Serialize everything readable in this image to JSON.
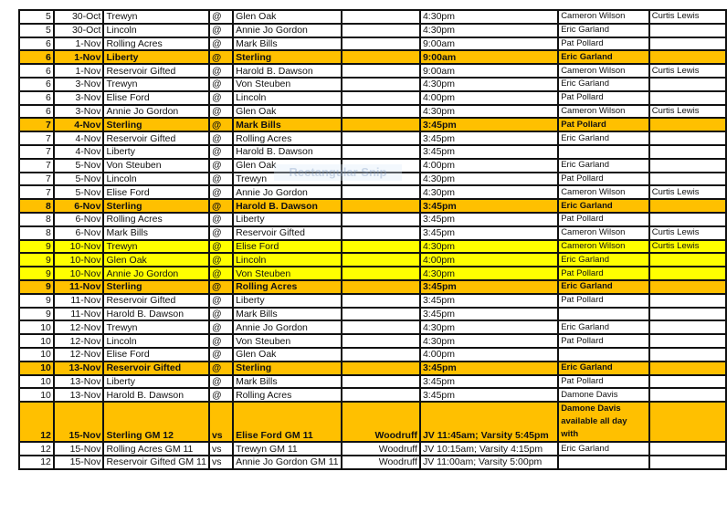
{
  "colors": {
    "highlight_orange": "#FFC000",
    "highlight_yellow": "#FFFF00"
  },
  "watermark": "Rectangular Snip",
  "rows": [
    {
      "week": "5",
      "date": "30-Oct",
      "home": "Trewyn",
      "sep": "@",
      "away": "Glen Oak",
      "location": "",
      "time": "4:30pm",
      "official1": "Cameron Wilson",
      "official2": "Curtis Lewis",
      "style": ""
    },
    {
      "week": "5",
      "date": "30-Oct",
      "home": "Lincoln",
      "sep": "@",
      "away": "Annie Jo Gordon",
      "location": "",
      "time": "4:30pm",
      "official1": "Eric  Garland",
      "official2": "",
      "style": ""
    },
    {
      "week": "6",
      "date": "1-Nov",
      "home": "Rolling Acres",
      "sep": "@",
      "away": "Mark Bills",
      "location": "",
      "time": "9:00am",
      "official1": "Pat Pollard",
      "official2": "",
      "style": ""
    },
    {
      "week": "6",
      "date": "1-Nov",
      "home": "Liberty",
      "sep": "@",
      "away": "Sterling",
      "location": "",
      "time": "9:00am",
      "official1": "Eric Garland",
      "official2": "",
      "style": "orange"
    },
    {
      "week": "6",
      "date": "1-Nov",
      "home": "Reservoir Gifted",
      "sep": "@",
      "away": "Harold B. Dawson",
      "location": "",
      "time": "9:00am",
      "official1": "Cameron Wilson",
      "official2": "Curtis Lewis",
      "style": ""
    },
    {
      "week": "6",
      "date": "3-Nov",
      "home": "Trewyn",
      "sep": "@",
      "away": "Von Steuben",
      "location": "",
      "time": "4:30pm",
      "official1": "Eric Garland",
      "official2": "",
      "style": ""
    },
    {
      "week": "6",
      "date": "3-Nov",
      "home": "Elise Ford",
      "sep": "@",
      "away": "Lincoln",
      "location": "",
      "time": "4:00pm",
      "official1": "Pat Pollard",
      "official2": "",
      "style": ""
    },
    {
      "week": "6",
      "date": "3-Nov",
      "home": "Annie Jo Gordon",
      "sep": "@",
      "away": "Glen Oak",
      "location": "",
      "time": "4:30pm",
      "official1": "Cameron Wilson",
      "official2": "Curtis Lewis",
      "style": ""
    },
    {
      "week": "7",
      "date": "4-Nov",
      "home": "Sterling",
      "sep": "@",
      "away": "Mark Bills",
      "location": "",
      "time": "3:45pm",
      "official1": "Pat Pollard",
      "official2": "",
      "style": "orange"
    },
    {
      "week": "7",
      "date": "4-Nov",
      "home": "Reservoir Gifted",
      "sep": "@",
      "away": "Rolling Acres",
      "location": "",
      "time": "3:45pm",
      "official1": "Eric  Garland",
      "official2": "",
      "style": ""
    },
    {
      "week": "7",
      "date": "4-Nov",
      "home": "Liberty",
      "sep": "@",
      "away": "Harold B. Dawson",
      "location": "",
      "time": "3:45pm",
      "official1": "",
      "official2": "",
      "style": ""
    },
    {
      "week": "7",
      "date": "5-Nov",
      "home": "Von Steuben",
      "sep": "@",
      "away": "Glen Oak",
      "location": "",
      "time": "4:00pm",
      "official1": "Eric  Garland",
      "official2": "",
      "style": ""
    },
    {
      "week": "7",
      "date": "5-Nov",
      "home": "Lincoln",
      "sep": "@",
      "away": "Trewyn",
      "location": "",
      "time": "4:30pm",
      "official1": "Pat Pollard",
      "official2": "",
      "style": ""
    },
    {
      "week": "7",
      "date": "5-Nov",
      "home": "Elise Ford",
      "sep": "@",
      "away": "Annie Jo Gordon",
      "location": "",
      "time": "4:30pm",
      "official1": "Cameron Wilson",
      "official2": "Curtis Lewis",
      "style": ""
    },
    {
      "week": "8",
      "date": "6-Nov",
      "home": "Sterling",
      "sep": "@",
      "away": "Harold B. Dawson",
      "location": "",
      "time": "3:45pm",
      "official1": "Eric Garland",
      "official2": "",
      "style": "orange"
    },
    {
      "week": "8",
      "date": "6-Nov",
      "home": "Rolling Acres",
      "sep": "@",
      "away": "Liberty",
      "location": "",
      "time": "3:45pm",
      "official1": "Pat Pollard",
      "official2": "",
      "style": ""
    },
    {
      "week": "8",
      "date": "6-Nov",
      "home": "Mark Bills",
      "sep": "@",
      "away": "Reservoir Gifted",
      "location": "",
      "time": "3:45pm",
      "official1": "Cameron Wilson",
      "official2": "Curtis Lewis",
      "style": ""
    },
    {
      "week": "9",
      "date": "10-Nov",
      "home": "Trewyn",
      "sep": "@",
      "away": "Elise Ford",
      "location": "",
      "time": "4:30pm",
      "official1": "Cameron Wilson",
      "official2": "Curtis Lewis",
      "style": "yellow"
    },
    {
      "week": "9",
      "date": "10-Nov",
      "home": "Glen Oak",
      "sep": "@",
      "away": "Lincoln",
      "location": "",
      "time": "4:00pm",
      "official1": "Eric  Garland",
      "official2": "",
      "style": "yellow"
    },
    {
      "week": "9",
      "date": "10-Nov",
      "home": "Annie Jo Gordon",
      "sep": "@",
      "away": "Von Steuben",
      "location": "",
      "time": "4:30pm",
      "official1": "Pat Pollard",
      "official2": "",
      "style": "yellow"
    },
    {
      "week": "9",
      "date": "11-Nov",
      "home": "Sterling",
      "sep": "@",
      "away": "Rolling Acres",
      "location": "",
      "time": "3:45pm",
      "official1": "Eric Garland",
      "official2": "",
      "style": "orange"
    },
    {
      "week": "9",
      "date": "11-Nov",
      "home": "Reservoir Gifted",
      "sep": "@",
      "away": "Liberty",
      "location": "",
      "time": "3:45pm",
      "official1": "Pat Pollard",
      "official2": "",
      "style": ""
    },
    {
      "week": "9",
      "date": "11-Nov",
      "home": "Harold B. Dawson",
      "sep": "@",
      "away": "Mark Bills",
      "location": "",
      "time": "3:45pm",
      "official1": "",
      "official2": "",
      "style": ""
    },
    {
      "week": "10",
      "date": "12-Nov",
      "home": "Trewyn",
      "sep": "@",
      "away": "Annie Jo Gordon",
      "location": "",
      "time": "4:30pm",
      "official1": "Eric  Garland",
      "official2": "",
      "style": ""
    },
    {
      "week": "10",
      "date": "12-Nov",
      "home": "Lincoln",
      "sep": "@",
      "away": "Von Steuben",
      "location": "",
      "time": "4:30pm",
      "official1": "Pat Pollard",
      "official2": "",
      "style": ""
    },
    {
      "week": "10",
      "date": "12-Nov",
      "home": "Elise Ford",
      "sep": "@",
      "away": "Glen Oak",
      "location": "",
      "time": "4:00pm",
      "official1": "",
      "official2": "",
      "style": ""
    },
    {
      "week": "10",
      "date": "13-Nov",
      "home": "Reservoir Gifted",
      "sep": "@",
      "away": "Sterling",
      "location": "",
      "time": "3:45pm",
      "official1": "Eric Garland",
      "official2": "",
      "style": "orange"
    },
    {
      "week": "10",
      "date": "13-Nov",
      "home": "Liberty",
      "sep": "@",
      "away": "Mark Bills",
      "location": "",
      "time": "3:45pm",
      "official1": "Pat Pollard",
      "official2": "",
      "style": ""
    },
    {
      "week": "10",
      "date": "13-Nov",
      "home": "Harold B. Dawson",
      "sep": "@",
      "away": "Rolling Acres",
      "location": "",
      "time": "3:45pm",
      "official1": "Damone Davis",
      "official2": "",
      "style": ""
    },
    {
      "week": "12",
      "date": "15-Nov",
      "home": "Sterling GM 12",
      "sep": "vs",
      "away": "Elise Ford GM 11",
      "location": "Woodruff",
      "time": "JV 11:45am; Varsity 5:45pm",
      "official1": "Damone Davis available all day with",
      "official2": "",
      "style": "orange tall"
    },
    {
      "week": "12",
      "date": "15-Nov",
      "home": "Rolling Acres GM 11",
      "sep": "vs",
      "away": "Trewyn GM 11",
      "location": "Woodruff",
      "time": "JV 10:15am; Varsity 4:15pm",
      "official1": "Eric  Garland",
      "official2": "",
      "style": ""
    },
    {
      "week": "12",
      "date": "15-Nov",
      "home": "Reservoir Gifted GM 11",
      "sep": "vs",
      "away": "Annie Jo Gordon GM 11",
      "location": "Woodruff",
      "time": "JV 11:00am; Varsity 5:00pm",
      "official1": "",
      "official2": "",
      "style": ""
    }
  ]
}
